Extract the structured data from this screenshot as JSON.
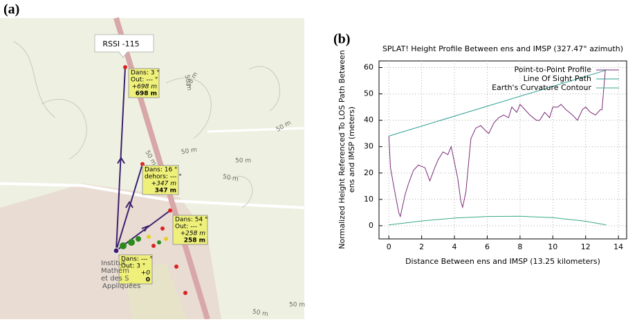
{
  "panel_a": {
    "label": "(a)",
    "popup": "RSSI -115",
    "markers": [
      {
        "lines": [
          "Dans: 3 °",
          "Out: --- °",
          "+698 m",
          "698 m"
        ]
      },
      {
        "lines": [
          "Dans: 16 °",
          "dehors: --- °",
          "+347 m",
          "347 m"
        ]
      },
      {
        "lines": [
          "Dans: 54 °",
          "Out: --- °",
          "+258 m",
          "258 m"
        ]
      },
      {
        "lines": [
          "Dans: --- °",
          "Out: 3 °",
          "+0",
          "0"
        ]
      }
    ],
    "contour_labels": [
      "50 m",
      "50 m",
      "50 m",
      "50 m",
      "50 m",
      "50 m",
      "50 m",
      "50 m",
      "50 m"
    ],
    "place": [
      "Institut",
      "Mathém",
      "et des S",
      "Appliquées"
    ]
  },
  "chart_data": {
    "type": "line",
    "panel_label": "(b)",
    "title": "SPLAT! Height Profile Between ens and IMSP (327.47° azimuth)",
    "xlabel": "Distance Between ens and IMSP (13.25 kilometers)",
    "ylabel": [
      "Normalized Height Referenced To LOS Path Between",
      "ens and IMSP (meters)"
    ],
    "xlim": [
      -0.6,
      14.5
    ],
    "ylim": [
      -5,
      62.5
    ],
    "xticks": [
      0,
      2,
      4,
      6,
      8,
      10,
      12,
      14
    ],
    "yticks": [
      0,
      10,
      20,
      30,
      40,
      50,
      60
    ],
    "grid": true,
    "legend": "top-right",
    "series": [
      {
        "name": "Point-to-Point Profile",
        "color": "#7a2a78",
        "x": [
          0,
          0.1,
          0.3,
          0.6,
          0.7,
          1.0,
          1.2,
          1.5,
          1.8,
          2.2,
          2.5,
          2.8,
          3.0,
          3.3,
          3.6,
          3.8,
          4.0,
          4.2,
          4.4,
          4.5,
          4.7,
          5.0,
          5.3,
          5.6,
          5.9,
          6.1,
          6.4,
          6.7,
          7.0,
          7.3,
          7.5,
          7.8,
          8.0,
          8.3,
          8.6,
          9.0,
          9.2,
          9.5,
          9.8,
          10.0,
          10.3,
          10.5,
          10.8,
          11.2,
          11.5,
          11.8,
          12.0,
          12.3,
          12.6,
          12.9,
          13.0,
          13.2,
          13.25
        ],
        "values": [
          34,
          22,
          15,
          5,
          3.5,
          12,
          16,
          21,
          23,
          22,
          17,
          22,
          25,
          28,
          27,
          30,
          24,
          18,
          9,
          7,
          13,
          33,
          37,
          38,
          36,
          35,
          39,
          41,
          42,
          41,
          45,
          43,
          46,
          44,
          42,
          40,
          40,
          43,
          41,
          45,
          45,
          46,
          44,
          42,
          40,
          44,
          45,
          43,
          42,
          44,
          44,
          59,
          59
        ]
      },
      {
        "name": "Line Of Sight Path",
        "color": "#2a9d8f",
        "x": [
          0,
          13.25
        ],
        "values": [
          34,
          59
        ]
      },
      {
        "name": "Earth's Curvature Contour",
        "color": "#3aa88a",
        "x": [
          0,
          2,
          4,
          6,
          8,
          10,
          12,
          13.25
        ],
        "values": [
          0.3,
          1.8,
          2.9,
          3.5,
          3.6,
          3.1,
          1.7,
          0.3
        ]
      }
    ]
  }
}
